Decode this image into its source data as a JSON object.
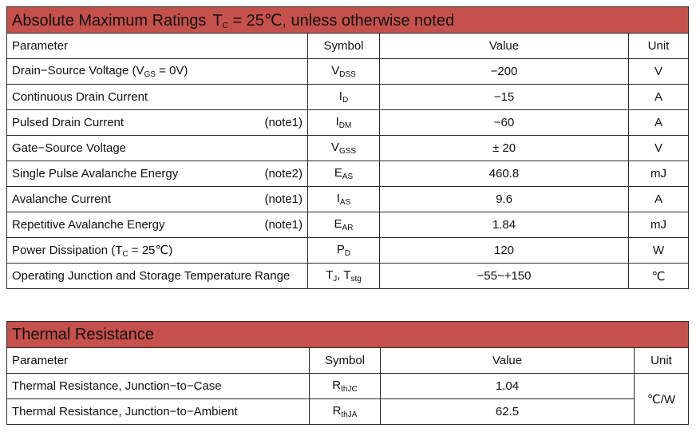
{
  "table1": {
    "title": "Absolute Maximum Ratings",
    "condition_prefix": "T",
    "condition_sub": "C",
    "condition_suffix": " = 25℃, unless otherwise noted",
    "headers": {
      "parameter": "Parameter",
      "symbol": "Symbol",
      "value": "Value",
      "unit": "Unit"
    },
    "rows": [
      {
        "param": "Drain−Source Voltage (V",
        "param_sub": "GS",
        "param_tail": " = 0V)",
        "note": "",
        "sym": "V",
        "sym_sub": "DSS",
        "value": "−200",
        "unit": "V"
      },
      {
        "param": "Continuous Drain Current",
        "param_sub": "",
        "param_tail": "",
        "note": "",
        "sym": "I",
        "sym_sub": "D",
        "value": "−15",
        "unit": "A"
      },
      {
        "param": "Pulsed Drain Current",
        "param_sub": "",
        "param_tail": "",
        "note": "(note1)",
        "sym": "I",
        "sym_sub": "DM",
        "value": "−60",
        "unit": "A"
      },
      {
        "param": "Gate−Source Voltage",
        "param_sub": "",
        "param_tail": "",
        "note": "",
        "sym": "V",
        "sym_sub": "GSS",
        "value": "± 20",
        "unit": "V"
      },
      {
        "param": "Single Pulse Avalanche Energy",
        "param_sub": "",
        "param_tail": "",
        "note": "(note2)",
        "sym": "E",
        "sym_sub": "AS",
        "value": "460.8",
        "unit": "mJ"
      },
      {
        "param": "Avalanche Current",
        "param_sub": "",
        "param_tail": "",
        "note": "(note1)",
        "sym": "I",
        "sym_sub": "AS",
        "value": "9.6",
        "unit": "A"
      },
      {
        "param": "Repetitive Avalanche Energy",
        "param_sub": "",
        "param_tail": "",
        "note": "(note1)",
        "sym": "E",
        "sym_sub": "AR",
        "value": "1.84",
        "unit": "mJ"
      },
      {
        "param": "Power Dissipation (T",
        "param_sub": "C",
        "param_tail": " = 25℃)",
        "note": "",
        "sym": "P",
        "sym_sub": "D",
        "value": "120",
        "unit": "W"
      },
      {
        "param": "Operating Junction and Storage Temperature Range",
        "param_sub": "",
        "param_tail": "",
        "note": "",
        "sym": "T",
        "sym_sub": "J",
        "sym_tail": ", T",
        "sym_sub2": "stg",
        "value": "−55~+150",
        "unit": "℃"
      }
    ]
  },
  "table2": {
    "title": "Thermal Resistance",
    "headers": {
      "parameter": "Parameter",
      "symbol": "Symbol",
      "value": "Value",
      "unit": "Unit"
    },
    "rows": [
      {
        "param": "Thermal Resistance, Junction−to−Case",
        "sym": "R",
        "sym_sub": "thJC",
        "value": "1.04"
      },
      {
        "param": "Thermal Resistance, Junction−to−Ambient",
        "sym": "R",
        "sym_sub": "thJA",
        "value": "62.5"
      }
    ],
    "unit": "℃/W"
  },
  "colors": {
    "title_bg": "#c6504b",
    "border": "#2a2a2a"
  }
}
